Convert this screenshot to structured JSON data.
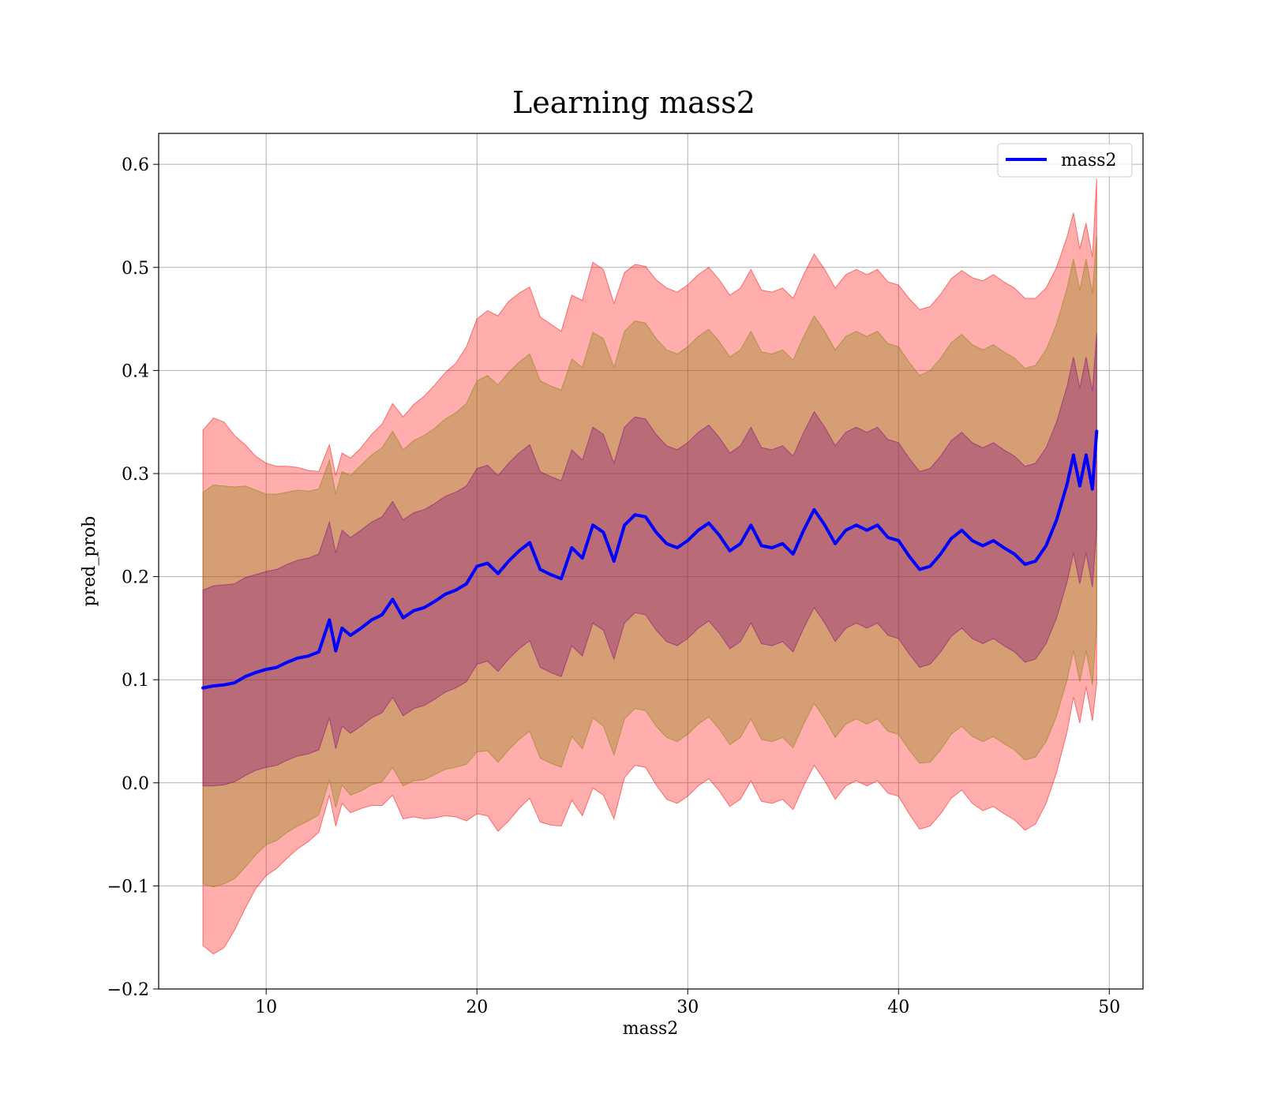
{
  "chart_data": {
    "type": "line",
    "title": "Learning mass2",
    "xlabel": "mass2",
    "ylabel": "pred_prob",
    "xlim": [
      4.9,
      51.6
    ],
    "ylim": [
      -0.2,
      0.63
    ],
    "xticks": [
      10,
      20,
      30,
      40,
      50
    ],
    "yticks": [
      -0.2,
      -0.1,
      0.0,
      0.1,
      0.2,
      0.3,
      0.4,
      0.5,
      0.6
    ],
    "xtick_labels": [
      "10",
      "20",
      "30",
      "40",
      "50"
    ],
    "ytick_labels": [
      "−0.2",
      "−0.1",
      "0.0",
      "0.1",
      "0.2",
      "0.3",
      "0.4",
      "0.5",
      "0.6"
    ],
    "grid": true,
    "legend": {
      "position": "top-right",
      "entries": [
        "mass2"
      ]
    },
    "series": [
      {
        "name": "mass2",
        "color": "#0000ff",
        "x": [
          7.0,
          7.5,
          8.0,
          8.5,
          9.0,
          9.5,
          10.0,
          10.5,
          11.0,
          11.5,
          12.0,
          12.5,
          13.0,
          13.3,
          13.6,
          14.0,
          14.5,
          15.0,
          15.5,
          16.0,
          16.5,
          17.0,
          17.5,
          18.0,
          18.5,
          19.0,
          19.5,
          20.0,
          20.5,
          21.0,
          21.5,
          22.0,
          22.5,
          23.0,
          23.5,
          24.0,
          24.5,
          25.0,
          25.5,
          26.0,
          26.5,
          27.0,
          27.5,
          28.0,
          28.5,
          29.0,
          29.5,
          30.0,
          30.5,
          31.0,
          31.5,
          32.0,
          32.5,
          33.0,
          33.5,
          34.0,
          34.5,
          35.0,
          35.5,
          36.0,
          36.5,
          37.0,
          37.5,
          38.0,
          38.5,
          39.0,
          39.5,
          40.0,
          40.5,
          41.0,
          41.5,
          42.0,
          42.5,
          43.0,
          43.5,
          44.0,
          44.5,
          45.0,
          45.5,
          46.0,
          46.5,
          47.0,
          47.5,
          48.0,
          48.3,
          48.6,
          48.9,
          49.2,
          49.4
        ],
        "y": [
          0.092,
          0.094,
          0.095,
          0.097,
          0.103,
          0.107,
          0.11,
          0.112,
          0.117,
          0.121,
          0.123,
          0.127,
          0.158,
          0.128,
          0.15,
          0.143,
          0.15,
          0.158,
          0.163,
          0.178,
          0.16,
          0.167,
          0.17,
          0.176,
          0.183,
          0.187,
          0.193,
          0.21,
          0.213,
          0.203,
          0.215,
          0.225,
          0.233,
          0.207,
          0.202,
          0.198,
          0.228,
          0.218,
          0.25,
          0.243,
          0.215,
          0.25,
          0.26,
          0.258,
          0.243,
          0.232,
          0.228,
          0.235,
          0.245,
          0.252,
          0.24,
          0.225,
          0.232,
          0.25,
          0.23,
          0.228,
          0.232,
          0.222,
          0.245,
          0.265,
          0.25,
          0.232,
          0.245,
          0.25,
          0.245,
          0.25,
          0.238,
          0.235,
          0.22,
          0.207,
          0.21,
          0.222,
          0.237,
          0.245,
          0.235,
          0.23,
          0.235,
          0.228,
          0.222,
          0.212,
          0.215,
          0.23,
          0.255,
          0.29,
          0.318,
          0.288,
          0.318,
          0.285,
          0.341
        ]
      }
    ],
    "bands": [
      {
        "color": "#ff0000",
        "opacity": 0.32,
        "half_width": [
          0.25,
          0.26,
          0.255,
          0.24,
          0.225,
          0.21,
          0.2,
          0.195,
          0.19,
          0.185,
          0.18,
          0.175,
          0.17,
          0.17,
          0.17,
          0.172,
          0.175,
          0.18,
          0.185,
          0.19,
          0.195,
          0.2,
          0.205,
          0.21,
          0.215,
          0.22,
          0.23,
          0.24,
          0.245,
          0.25,
          0.252,
          0.25,
          0.248,
          0.245,
          0.243,
          0.24,
          0.245,
          0.25,
          0.255,
          0.255,
          0.25,
          0.245,
          0.243,
          0.243,
          0.245,
          0.248,
          0.248,
          0.248,
          0.248,
          0.248,
          0.248,
          0.248,
          0.248,
          0.248,
          0.248,
          0.248,
          0.248,
          0.248,
          0.248,
          0.248,
          0.248,
          0.248,
          0.248,
          0.248,
          0.248,
          0.248,
          0.248,
          0.248,
          0.25,
          0.252,
          0.252,
          0.252,
          0.252,
          0.252,
          0.255,
          0.257,
          0.258,
          0.258,
          0.258,
          0.258,
          0.255,
          0.25,
          0.245,
          0.24,
          0.235,
          0.23,
          0.225,
          0.225,
          0.245
        ]
      },
      {
        "color": "#808000",
        "opacity": 0.32,
        "half_width": [
          0.19,
          0.195,
          0.193,
          0.19,
          0.185,
          0.177,
          0.17,
          0.168,
          0.165,
          0.163,
          0.16,
          0.158,
          0.155,
          0.152,
          0.152,
          0.155,
          0.158,
          0.16,
          0.162,
          0.163,
          0.163,
          0.165,
          0.167,
          0.168,
          0.17,
          0.172,
          0.175,
          0.18,
          0.182,
          0.183,
          0.183,
          0.183,
          0.183,
          0.183,
          0.183,
          0.183,
          0.183,
          0.185,
          0.187,
          0.188,
          0.188,
          0.188,
          0.188,
          0.188,
          0.188,
          0.188,
          0.188,
          0.188,
          0.188,
          0.188,
          0.188,
          0.188,
          0.188,
          0.188,
          0.188,
          0.188,
          0.188,
          0.188,
          0.188,
          0.188,
          0.188,
          0.188,
          0.188,
          0.188,
          0.188,
          0.188,
          0.188,
          0.188,
          0.188,
          0.188,
          0.19,
          0.19,
          0.19,
          0.19,
          0.19,
          0.19,
          0.19,
          0.19,
          0.19,
          0.19,
          0.19,
          0.19,
          0.19,
          0.19,
          0.19,
          0.19,
          0.19,
          0.19,
          0.19
        ]
      },
      {
        "color": "#800080",
        "opacity": 0.32,
        "half_width": [
          0.095,
          0.097,
          0.097,
          0.096,
          0.096,
          0.095,
          0.095,
          0.095,
          0.095,
          0.095,
          0.095,
          0.095,
          0.095,
          0.095,
          0.095,
          0.095,
          0.095,
          0.095,
          0.095,
          0.095,
          0.095,
          0.095,
          0.095,
          0.095,
          0.095,
          0.095,
          0.095,
          0.095,
          0.095,
          0.095,
          0.095,
          0.095,
          0.095,
          0.095,
          0.095,
          0.095,
          0.095,
          0.095,
          0.095,
          0.095,
          0.095,
          0.095,
          0.095,
          0.095,
          0.095,
          0.095,
          0.095,
          0.095,
          0.095,
          0.095,
          0.095,
          0.095,
          0.095,
          0.095,
          0.095,
          0.095,
          0.095,
          0.095,
          0.095,
          0.095,
          0.095,
          0.095,
          0.095,
          0.095,
          0.095,
          0.095,
          0.095,
          0.095,
          0.095,
          0.095,
          0.095,
          0.095,
          0.095,
          0.095,
          0.095,
          0.095,
          0.095,
          0.095,
          0.095,
          0.095,
          0.095,
          0.095,
          0.095,
          0.095,
          0.095,
          0.095,
          0.095,
          0.095,
          0.095
        ]
      }
    ]
  }
}
